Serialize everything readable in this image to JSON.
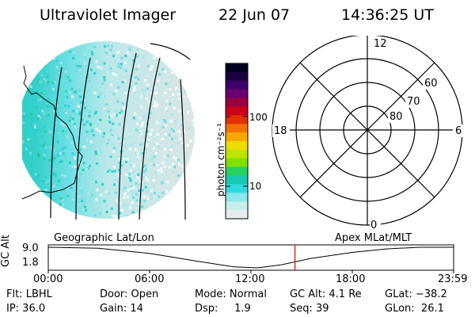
{
  "header": {
    "instrument": "Ultraviolet Imager",
    "date": "22 Jun 07",
    "time": "14:36:25 UT"
  },
  "colorbar": {
    "unit_label": "photon cm⁻²s⁻¹",
    "ticks": [
      "100",
      "10"
    ],
    "colors": [
      "#000020",
      "#1a0040",
      "#3c006a",
      "#6a0070",
      "#9a0040",
      "#c8001c",
      "#e03000",
      "#f07000",
      "#f6a800",
      "#ecdc00",
      "#bfe400",
      "#80e000",
      "#28d060",
      "#18c8b0",
      "#30d8e0",
      "#8ae6ea",
      "#c6ecec",
      "#e4ecec"
    ]
  },
  "polar_plot": {
    "mlt_labels": {
      "top": "12",
      "left": "18",
      "right": "6",
      "bottom": "0"
    },
    "lat_labels": [
      "60",
      "70",
      "80"
    ]
  },
  "timeline": {
    "left_label": "Geographic Lat/Lon",
    "right_label": "Apex MLat/MLT",
    "axis_title": "GC Alt",
    "y_values": [
      "9.0",
      "1.8"
    ],
    "x_ticks": [
      "00:00",
      "06:00",
      "12:00",
      "18:00",
      "23:59"
    ],
    "marker_time": "14:36:25",
    "line_color": "#000000",
    "marker_color": "#e00000"
  },
  "status": {
    "flt": "Flt: LBHL",
    "ip": "IP: 36.0",
    "door": "Door: Open",
    "gain": "Gain: 14",
    "mode": "Mode: Normal",
    "dsp": "Dsp:     1.9",
    "gc_alt": "GC Alt: 4.1 Re",
    "seq": "Seq: 39",
    "glat": "GLat: −38.2",
    "glon": "GLon:  26.1"
  }
}
